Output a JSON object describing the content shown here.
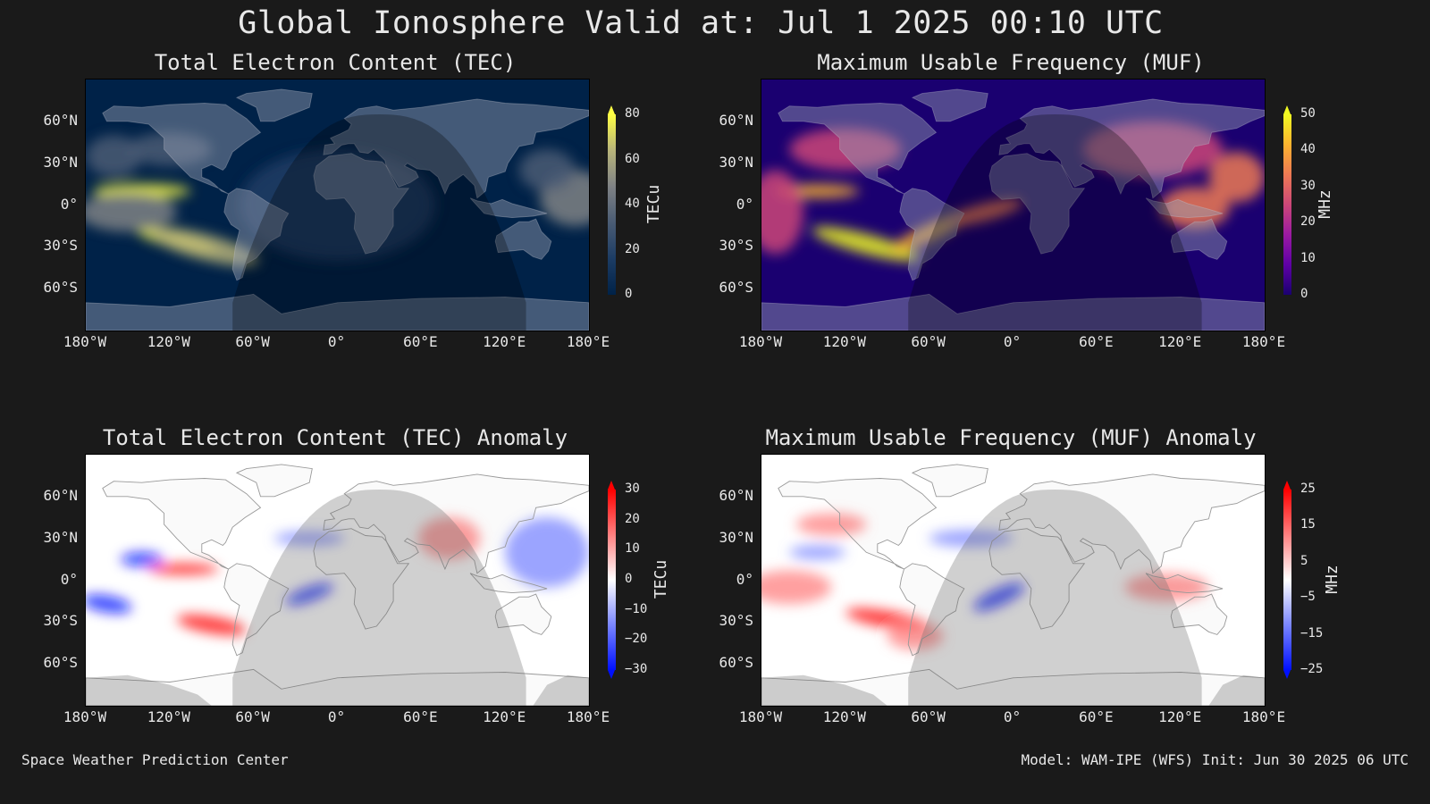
{
  "title": "Global Ionosphere Valid at: Jul 1 2025 00:10 UTC",
  "panels": {
    "tec": {
      "title": "Total Electron Content (TEC)",
      "unit": "TECu",
      "colorbar_ticks": [
        "80",
        "60",
        "40",
        "20",
        "0"
      ],
      "colors": [
        "#002248",
        "#1c3c64",
        "#4a5c74",
        "#7f8285",
        "#b8b47a",
        "#ffff44"
      ]
    },
    "muf": {
      "title": "Maximum Usable Frequency (MUF)",
      "unit": "MHz",
      "colorbar_ticks": [
        "50",
        "40",
        "30",
        "20",
        "10",
        "0"
      ],
      "colors": [
        "#1a0070",
        "#5e00a6",
        "#9b1aa2",
        "#cc4778",
        "#ed7953",
        "#fdb32f",
        "#f0f921"
      ]
    },
    "tec_anom": {
      "title": "Total Electron Content (TEC) Anomaly",
      "unit": "TECu",
      "colorbar_ticks": [
        "30",
        "20",
        "10",
        "0",
        "−10",
        "−20",
        "−30"
      ],
      "colors": [
        "#0010ff",
        "#7a86ff",
        "#ffffff",
        "#ff8080",
        "#ff0000"
      ]
    },
    "muf_anom": {
      "title": "Maximum Usable Frequency (MUF) Anomaly",
      "unit": "MHz",
      "colorbar_ticks": [
        "25",
        "15",
        "5",
        "−5",
        "−15",
        "−25"
      ],
      "colors": [
        "#0010ff",
        "#7a86ff",
        "#ffffff",
        "#ff8080",
        "#ff0000"
      ]
    }
  },
  "lat_labels": [
    "60°N",
    "30°N",
    "0°",
    "30°S",
    "60°S"
  ],
  "lon_labels": [
    "180°W",
    "120°W",
    "60°W",
    "0°",
    "60°E",
    "120°E",
    "180°E"
  ],
  "footer": {
    "left": "Space Weather Prediction Center",
    "right": "Model: WAM-IPE (WFS) Init: Jun 30 2025 06 UTC"
  }
}
